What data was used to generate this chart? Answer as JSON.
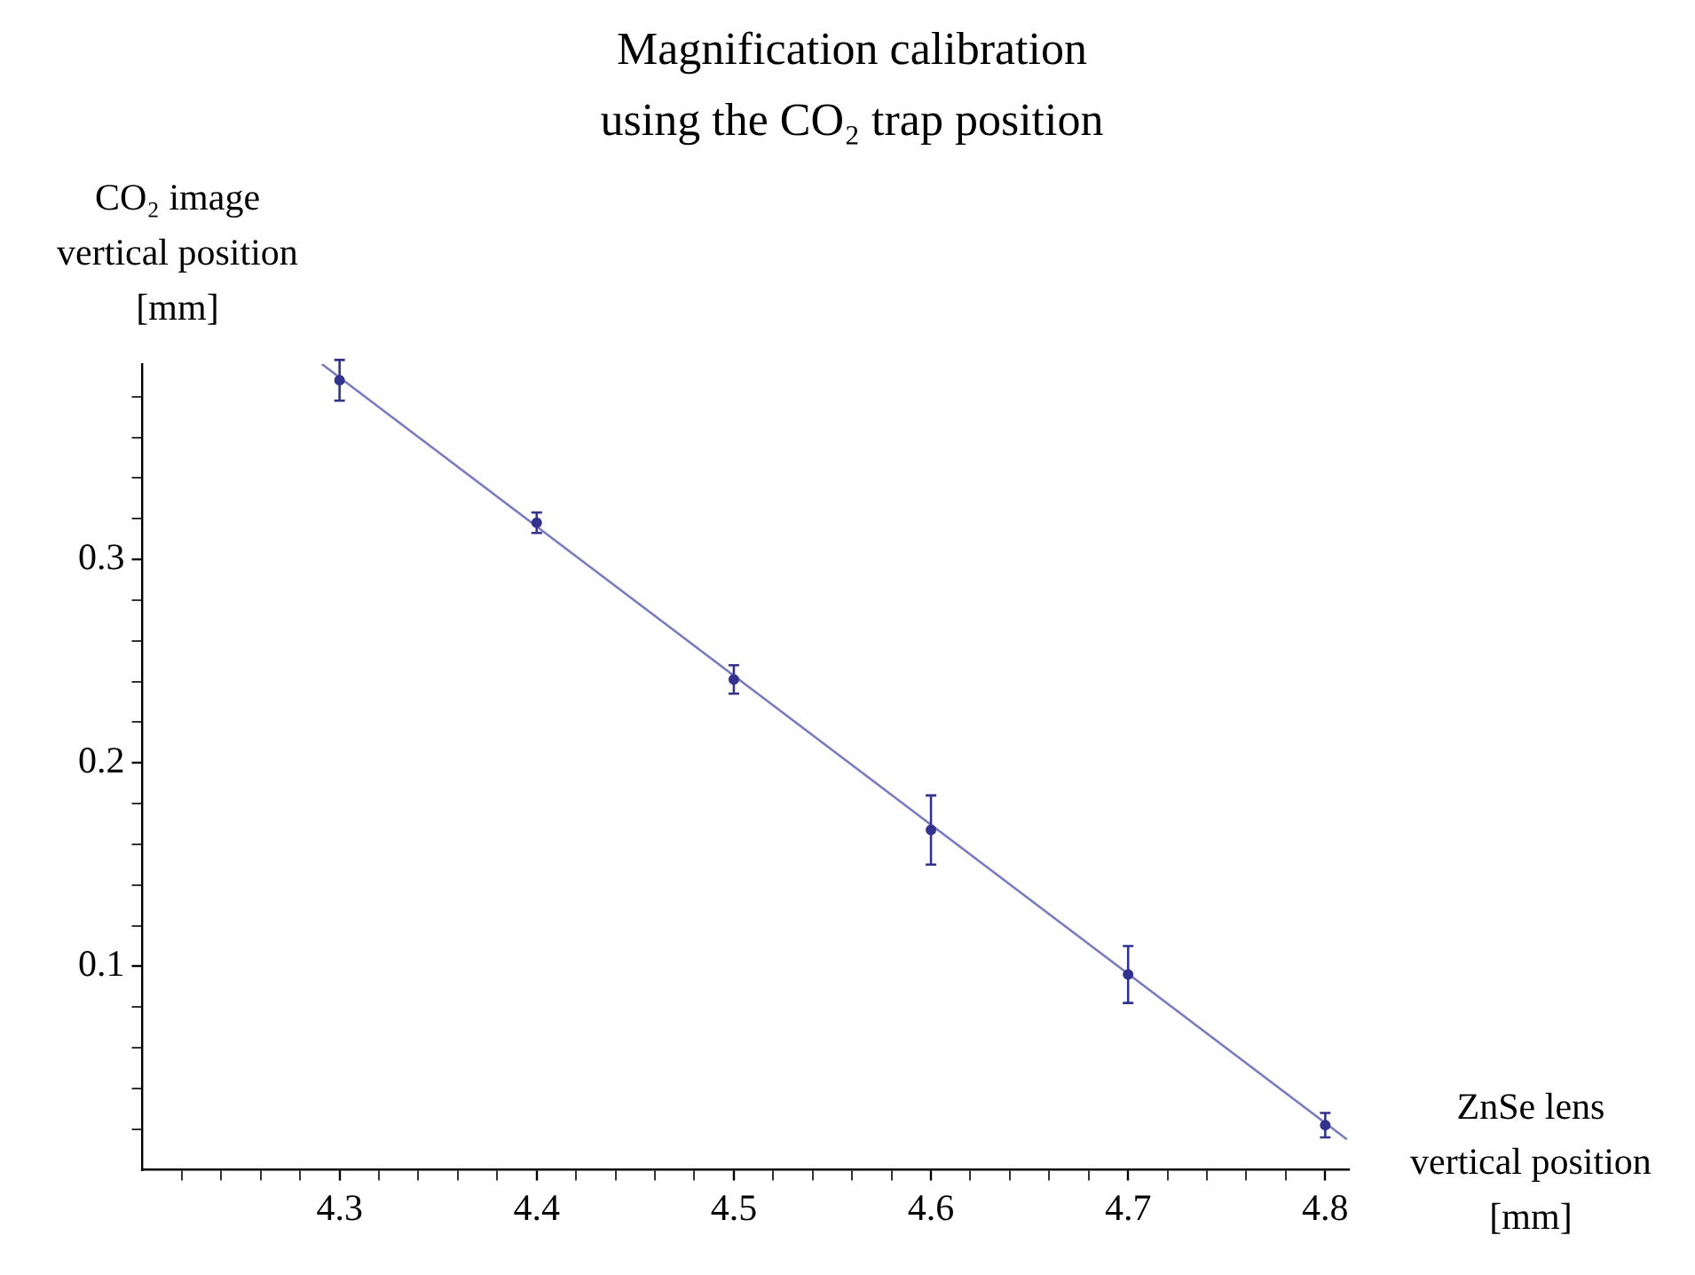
{
  "chart_data": {
    "type": "scatter",
    "title": "Magnification calibration\nusing the CO₂ trap position",
    "xlabel": "ZnSe lens\nvertical position\n[mm]",
    "ylabel": "CO₂ image\nvertical position\n[mm]",
    "xlim": [
      4.2,
      4.812
    ],
    "ylim": [
      0,
      0.396
    ],
    "xticks": [
      {
        "value": 4.22,
        "label": null
      },
      {
        "value": 4.24,
        "label": null
      },
      {
        "value": 4.26,
        "label": null
      },
      {
        "value": 4.28,
        "label": null
      },
      4.3,
      {
        "value": 4.32,
        "label": null
      },
      {
        "value": 4.34,
        "label": null
      },
      {
        "value": 4.36,
        "label": null
      },
      {
        "value": 4.38,
        "label": null
      },
      4.4,
      {
        "value": 4.42,
        "label": null
      },
      {
        "value": 4.44,
        "label": null
      },
      {
        "value": 4.46,
        "label": null
      },
      {
        "value": 4.48,
        "label": null
      },
      4.5,
      {
        "value": 4.52,
        "label": null
      },
      {
        "value": 4.54,
        "label": null
      },
      {
        "value": 4.56,
        "label": null
      },
      {
        "value": 4.58,
        "label": null
      },
      4.6,
      {
        "value": 4.62,
        "label": null
      },
      {
        "value": 4.64,
        "label": null
      },
      {
        "value": 4.66,
        "label": null
      },
      {
        "value": 4.68,
        "label": null
      },
      4.7,
      {
        "value": 4.72,
        "label": null
      },
      {
        "value": 4.74,
        "label": null
      },
      {
        "value": 4.76,
        "label": null
      },
      {
        "value": 4.78,
        "label": null
      },
      4.8
    ],
    "yticks": [
      {
        "value": 0.02,
        "label": null
      },
      {
        "value": 0.04,
        "label": null
      },
      {
        "value": 0.06,
        "label": null
      },
      {
        "value": 0.08,
        "label": null
      },
      0.1,
      {
        "value": 0.12,
        "label": null
      },
      {
        "value": 0.14,
        "label": null
      },
      {
        "value": 0.16,
        "label": null
      },
      {
        "value": 0.18,
        "label": null
      },
      0.2,
      {
        "value": 0.22,
        "label": null
      },
      {
        "value": 0.24,
        "label": null
      },
      {
        "value": 0.26,
        "label": null
      },
      {
        "value": 0.28,
        "label": null
      },
      0.3,
      {
        "value": 0.32,
        "label": null
      },
      {
        "value": 0.34,
        "label": null
      },
      {
        "value": 0.36,
        "label": null
      },
      {
        "value": 0.38,
        "label": null
      }
    ],
    "grid": false,
    "legend": false,
    "marker": "circle",
    "series": [
      {
        "color": "#33338f",
        "x": [
          4.3,
          4.4,
          4.5,
          4.6,
          4.7,
          4.8
        ],
        "values": [
          0.388,
          0.318,
          0.241,
          0.167,
          0.096,
          0.022
        ],
        "errors": [
          0.01,
          0.005,
          0.007,
          0.017,
          0.014,
          0.006
        ]
      },
      {
        "type": "line",
        "color": "#7b7bc0",
        "marker": "none",
        "x": [
          4.291,
          4.811
        ],
        "values": [
          0.396,
          0.015
        ]
      }
    ]
  }
}
